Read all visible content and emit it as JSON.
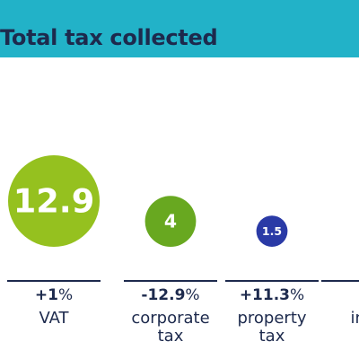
{
  "header": {
    "title": "Total tax collected"
  },
  "colors": {
    "band": "#22b2c8",
    "text": "#1d2a4d"
  },
  "chart_data": {
    "type": "bubble",
    "title": "Total tax collected",
    "items": [
      {
        "label_lines": [
          "VAT"
        ],
        "value": 12.9,
        "value_label": "12.9",
        "change_num": "+1",
        "change_unit": "%",
        "color": "#95c11f"
      },
      {
        "label_lines": [
          "corporate",
          "tax"
        ],
        "value": 4,
        "value_label": "4",
        "change_num": "-12.9",
        "change_unit": "%",
        "color": "#68a820"
      },
      {
        "label_lines": [
          "property",
          "tax"
        ],
        "value": 1.5,
        "value_label": "1.5",
        "change_num": "+11.3",
        "change_unit": "%",
        "color": "#2a3aa6"
      },
      {
        "label_lines": [
          "inhe"
        ],
        "value": null,
        "value_label": "",
        "change_num": "-",
        "change_unit": "",
        "color": "#2a3aa6"
      }
    ]
  }
}
